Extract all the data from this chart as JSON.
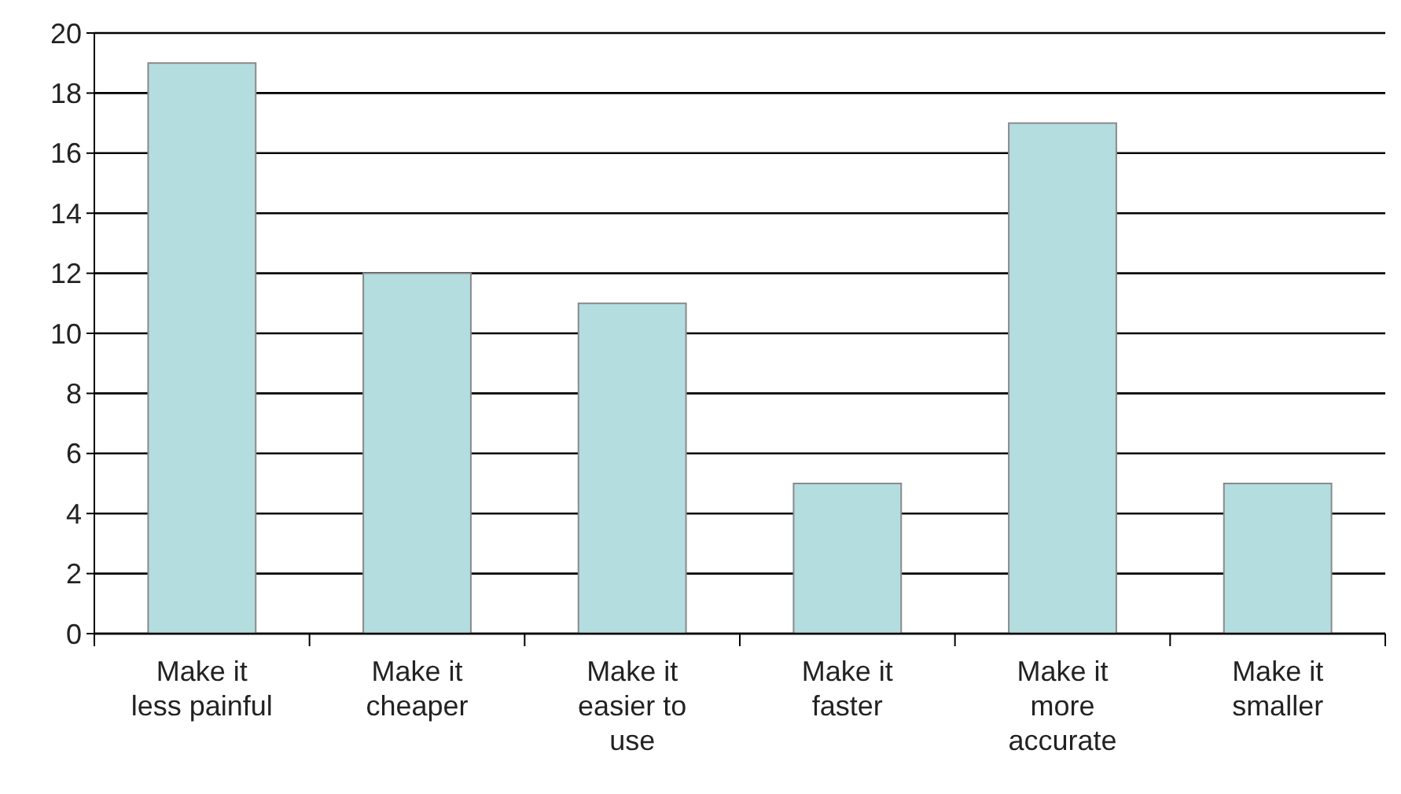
{
  "chart_data": {
    "type": "bar",
    "categories": [
      "Make it\nless painful",
      "Make it\ncheaper",
      "Make it\neasier to\nuse",
      "Make it\nfaster",
      "Make it\nmore\naccurate",
      "Make it\nsmaller"
    ],
    "values": [
      19,
      12,
      11,
      5,
      17,
      5
    ],
    "color": "#b4dde0",
    "ylim": [
      0,
      20
    ],
    "yticks": [
      0,
      2,
      4,
      6,
      8,
      10,
      12,
      14,
      16,
      18,
      20
    ],
    "grid": "y"
  }
}
